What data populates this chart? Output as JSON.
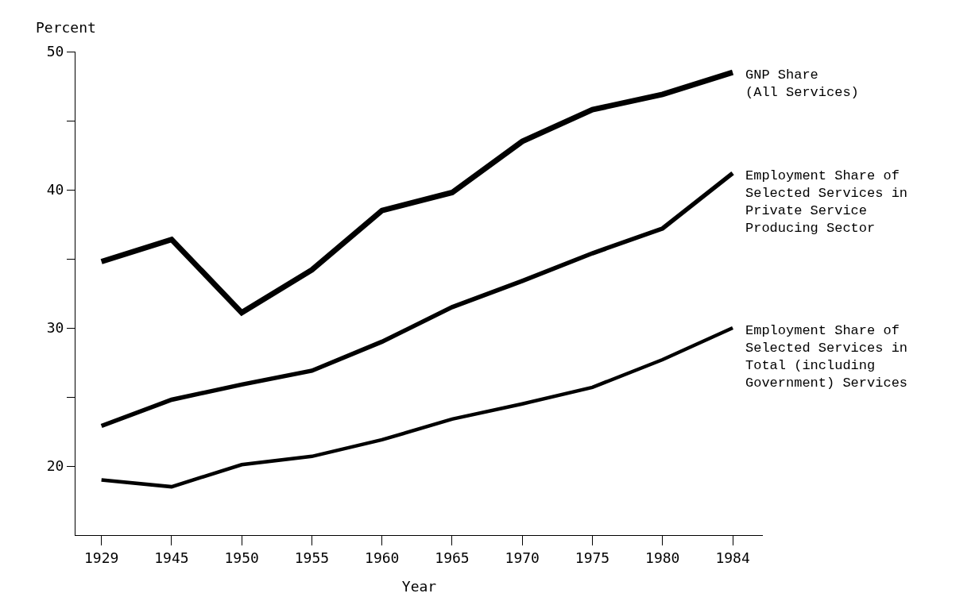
{
  "chart_data": {
    "type": "line",
    "xlabel": "Year",
    "ylabel": "Percent",
    "categories": [
      "1929",
      "1945",
      "1950",
      "1955",
      "1960",
      "1965",
      "1970",
      "1975",
      "1980",
      "1984"
    ],
    "series": [
      {
        "name": "GNP Share\n(All Services)",
        "color": "#000000",
        "values": [
          34.8,
          36.4,
          31.1,
          34.2,
          38.5,
          39.8,
          43.5,
          45.8,
          46.9,
          48.5
        ]
      },
      {
        "name": "Employment Share of\nSelected Services in\nPrivate Service\nProducing Sector",
        "color": "#000000",
        "values": [
          22.9,
          24.8,
          25.9,
          26.9,
          29.0,
          31.5,
          33.4,
          35.4,
          37.2,
          41.2
        ]
      },
      {
        "name": "Employment Share of\nSelected Services in\nTotal (including\nGovernment) Services",
        "color": "#000000",
        "values": [
          19.0,
          18.5,
          20.1,
          20.7,
          21.9,
          23.4,
          24.5,
          25.7,
          27.7,
          30.0
        ]
      }
    ],
    "ylim": [
      15,
      50
    ],
    "yticks": [
      20,
      {
        "value": 25,
        "label": null
      },
      30,
      {
        "value": 35,
        "label": null
      },
      40,
      {
        "value": 45,
        "label": null
      },
      50
    ],
    "legend": false,
    "marker": "none",
    "line_style": "solid"
  }
}
